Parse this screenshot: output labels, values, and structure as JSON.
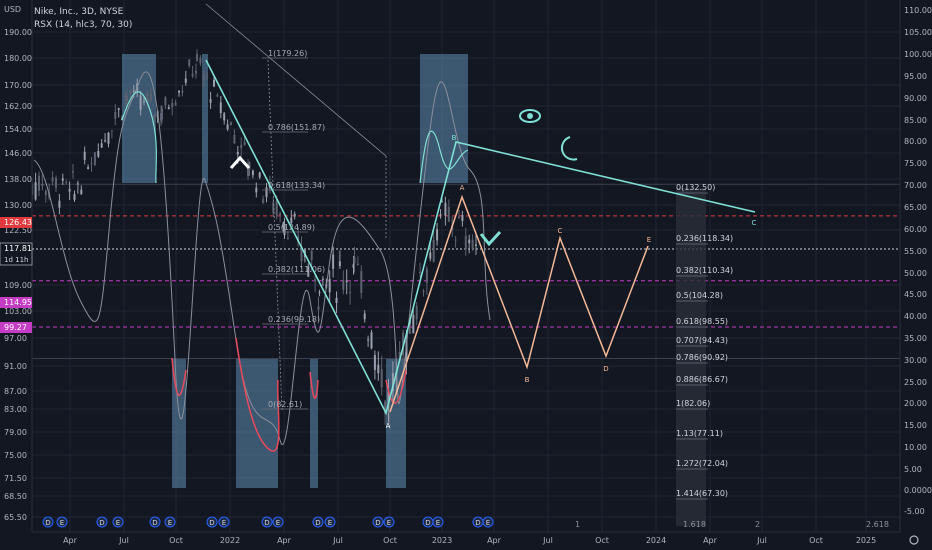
{
  "header": {
    "currency": "USD",
    "symbol_line": "Nike, Inc., 3D, NYSE",
    "indicator_line": "RSX (14, hlc3, 70, 30)"
  },
  "left_axis": {
    "ticks": [
      "190.00",
      "180.00",
      "170.00",
      "162.00",
      "154.00",
      "146.00",
      "138.00",
      "130.00",
      "122.50",
      "109.00",
      "103.00",
      "97.00",
      "91.00",
      "87.00",
      "83.00",
      "79.00",
      "75.00",
      "71.50",
      "68.50",
      "65.50"
    ]
  },
  "price_tags": [
    {
      "label": "126.43",
      "color": "#e03a3e"
    },
    {
      "label": "117.81",
      "sub": "1d 11h",
      "color": "#131722"
    },
    {
      "label": "114.95",
      "color": "#c43cc4"
    },
    {
      "label": "99.27",
      "color": "#c43cc4"
    }
  ],
  "right_axis": {
    "ticks": [
      "110.00",
      "105.00",
      "100.00",
      "95.00",
      "90.00",
      "85.00",
      "80.00",
      "75.00",
      "70.00",
      "65.00",
      "60.00",
      "55.00",
      "50.00",
      "45.00",
      "40.00",
      "35.00",
      "30.00",
      "25.00",
      "20.00",
      "15.00",
      "10.00",
      "5.00",
      "0.0000",
      "-5.00"
    ]
  },
  "x_axis": {
    "ticks": [
      "Apr",
      "Jul",
      "Oct",
      "2022",
      "Apr",
      "Jul",
      "Oct",
      "2023",
      "Apr",
      "Jul",
      "Oct",
      "2024",
      "Apr",
      "Jul",
      "Oct",
      "2025"
    ]
  },
  "fib_left": [
    "1(179.26)",
    "0.786(151.87)",
    "0.618(133.34)",
    "0.5(124.89)",
    "0.382(111.06)",
    "0.236(99.18)",
    "0(82.61)"
  ],
  "fib_right": [
    "0(132.50)",
    "0.236(118.34)",
    "0.382(110.34)",
    "0.5(104.28)",
    "0.618(98.55)",
    "0.707(94.43)",
    "0.786(90.92)",
    "0.886(86.67)",
    "1(82.06)",
    "1.13(77.11)",
    "1.272(72.04)",
    "1.414(67.30)"
  ],
  "wave_labels": [
    "A",
    "B",
    "A",
    "B",
    "C",
    "D",
    "E",
    "C"
  ],
  "bottom_labels": [
    "1.618",
    "2",
    "2.618",
    "1"
  ],
  "colors": {
    "background": "#131722",
    "teal": "#7fe0d3",
    "orange": "#f5b896",
    "rsx_red": "#e8495c",
    "zone": "#5f8db0",
    "dashed_red": "#e03a3e",
    "dashed_magenta": "#c43cc4"
  },
  "chart_data": {
    "type": "candlestick",
    "title": "Nike, Inc., 3D, NYSE",
    "indicator": "RSX (14, hlc3, 70, 30)",
    "price_ylim": [
      65.5,
      190
    ],
    "rsx_ylim": [
      -5,
      110
    ],
    "rsx_levels": [
      70,
      30
    ],
    "x_range": [
      "2021-01",
      "2025-03"
    ],
    "price_series": [
      {
        "date": "2021-01",
        "value": 138
      },
      {
        "date": "2021-04",
        "value": 134
      },
      {
        "date": "2021-07",
        "value": 166
      },
      {
        "date": "2021-09",
        "value": 160
      },
      {
        "date": "2021-11",
        "value": 178
      },
      {
        "date": "2022-02",
        "value": 142
      },
      {
        "date": "2022-04",
        "value": 126
      },
      {
        "date": "2022-06",
        "value": 109
      },
      {
        "date": "2022-08",
        "value": 113
      },
      {
        "date": "2022-10",
        "value": 83
      },
      {
        "date": "2023-01",
        "value": 127
      },
      {
        "date": "2023-03",
        "value": 119
      }
    ],
    "wave_projection": [
      {
        "label": "A",
        "date": "2023-01-20",
        "value": 131
      },
      {
        "label": "B",
        "date": "2023-06-01",
        "value": 93
      },
      {
        "label": "C",
        "date": "2023-08-01",
        "value": 120
      },
      {
        "label": "D",
        "date": "2023-10-20",
        "value": 95
      },
      {
        "label": "E",
        "date": "2023-12-20",
        "value": 117
      }
    ],
    "horizontal_levels": [
      126.43,
      114.95,
      99.27,
      117.81
    ],
    "last_price": 117.81
  }
}
